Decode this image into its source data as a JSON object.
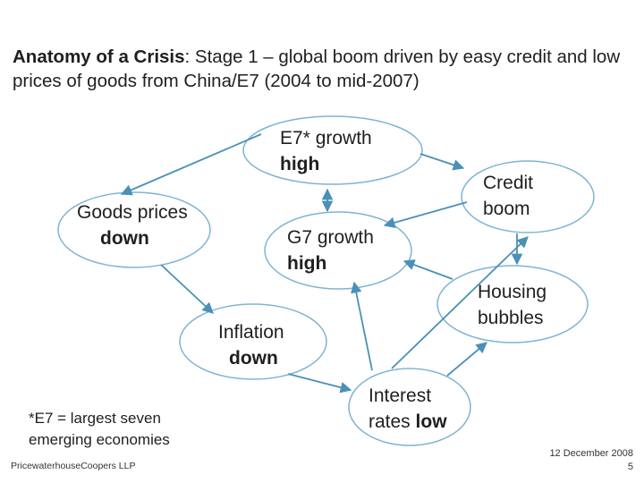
{
  "title": {
    "bold": "Anatomy of a Crisis",
    "rest": ": Stage 1 – global boom driven by easy credit and low prices of goods from China/E7 (2004 to mid-2007)"
  },
  "colors": {
    "ellipse_stroke": "#7fb4d3",
    "arrow": "#4a90b8"
  },
  "nodes": {
    "e7": {
      "line1": "E7* growth",
      "bold": "high"
    },
    "goods": {
      "line1": "Goods prices",
      "bold": "down"
    },
    "g7": {
      "line1": "G7 growth",
      "bold": "high"
    },
    "credit": {
      "line1": "Credit",
      "line2": "boom"
    },
    "housing": {
      "line1": "Housing",
      "line2": "bubbles"
    },
    "inflation": {
      "line1": "Inflation",
      "bold": "down"
    },
    "interest": {
      "line1": "Interest",
      "line2_prefix": "rates ",
      "bold": "low"
    }
  },
  "footnote": {
    "line1": "*E7 = largest seven",
    "line2": "emerging economies"
  },
  "footer": {
    "company": "PricewaterhouseCoopers LLP",
    "date": "12 December 2008",
    "page": "5"
  }
}
